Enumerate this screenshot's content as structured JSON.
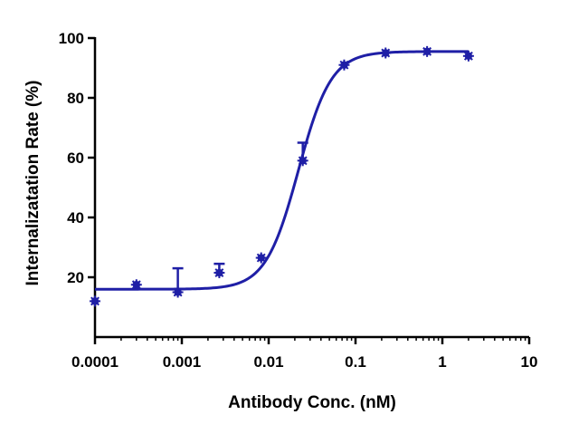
{
  "chart_data": {
    "type": "scatter",
    "title": "",
    "xlabel": "Antibody Conc. (nM)",
    "ylabel": "Internalizatation Rate (%)",
    "x_scale": "log",
    "xlim": [
      0.0001,
      10
    ],
    "ylim": [
      0,
      100
    ],
    "x_ticks": [
      0.0001,
      0.001,
      0.01,
      0.1,
      1,
      10
    ],
    "x_tick_labels": [
      "0.0001",
      "0.001",
      "0.01",
      "0.1",
      "1",
      "10"
    ],
    "y_ticks": [
      20,
      40,
      60,
      80,
      100
    ],
    "y_tick_labels": [
      "20",
      "40",
      "60",
      "80",
      "100"
    ],
    "grid": false,
    "color": "#1f1fa6",
    "points": [
      {
        "x": 0.0001,
        "y": 12,
        "err": 0
      },
      {
        "x": 0.0003,
        "y": 17.5,
        "err": 0
      },
      {
        "x": 0.0009,
        "y": 15,
        "err": 8
      },
      {
        "x": 0.0027,
        "y": 21.5,
        "err": 3
      },
      {
        "x": 0.0082,
        "y": 26.5,
        "err": 0
      },
      {
        "x": 0.0247,
        "y": 59,
        "err": 6
      },
      {
        "x": 0.074,
        "y": 91,
        "err": 0
      },
      {
        "x": 0.222,
        "y": 95,
        "err": 0
      },
      {
        "x": 0.667,
        "y": 95.5,
        "err": 0
      },
      {
        "x": 2.0,
        "y": 94,
        "err": 0
      }
    ],
    "fit_curve": {
      "model": "four-parameter logistic",
      "bottom": 16,
      "top": 95.5,
      "ec50": 0.022,
      "hill": 2.3,
      "x_range": [
        0.0001,
        2.0
      ]
    }
  }
}
